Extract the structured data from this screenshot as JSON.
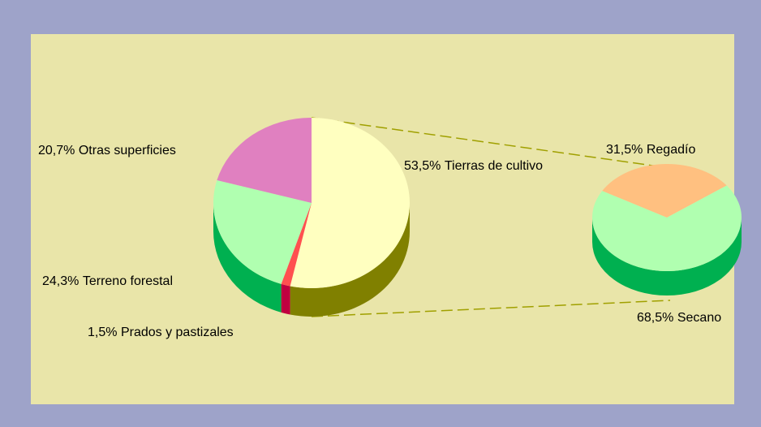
{
  "chart_data": [
    {
      "type": "pie",
      "categories": [
        "Tierras de cultivo",
        "Prados y pastizales",
        "Terreno forestal",
        "Otras superficies"
      ],
      "values": [
        53.5,
        1.5,
        24.3,
        20.7
      ],
      "value_labels": [
        "53,5%",
        "1,5%",
        "24,3%",
        "20,7%"
      ],
      "colors": [
        "#ffffc0",
        "#ff5050",
        "#b0ffb0",
        "#e080c0"
      ],
      "side_colors": [
        "#808000",
        "#c00040",
        "#00b050",
        "#a04080"
      ]
    },
    {
      "type": "pie",
      "categories": [
        "Regadío",
        "Secano"
      ],
      "values": [
        31.5,
        68.5
      ],
      "value_labels": [
        "31,5%",
        "68,5%"
      ],
      "colors": [
        "#ffc080",
        "#b0ffb0"
      ],
      "side_colors": [
        "#c08040",
        "#00b050"
      ]
    }
  ]
}
